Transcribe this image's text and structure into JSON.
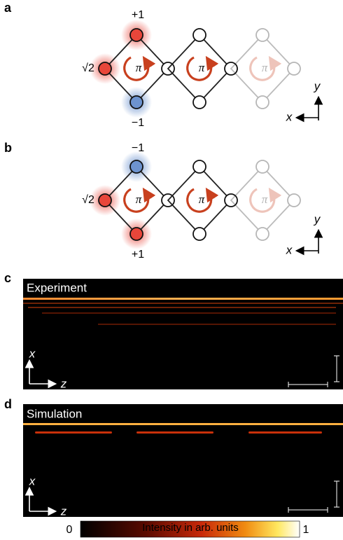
{
  "panels": [
    {
      "label": "a",
      "node_labels": {
        "top": "+1",
        "left": "√2",
        "bottom": "−1"
      },
      "flux": [
        "π",
        "π",
        "π"
      ],
      "axes": {
        "vertical": "y",
        "horizontal": "x"
      }
    },
    {
      "label": "b",
      "node_labels": {
        "top": "−1",
        "left": "√2",
        "bottom": "+1"
      },
      "flux": [
        "π",
        "π",
        "π"
      ],
      "axes": {
        "vertical": "y",
        "horizontal": "x"
      }
    },
    {
      "label": "c",
      "title": "Experiment",
      "axes": {
        "vertical": "x",
        "horizontal": "z"
      }
    },
    {
      "label": "d",
      "title": "Simulation",
      "axes": {
        "vertical": "x",
        "horizontal": "z"
      }
    }
  ],
  "colorbar": {
    "min_label": "0",
    "label": "Intensity in arb. units",
    "max_label": "1"
  }
}
